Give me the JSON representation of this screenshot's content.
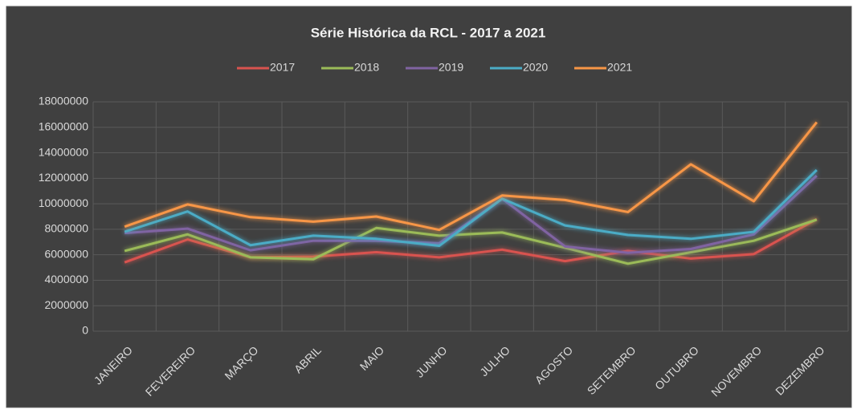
{
  "chart_data": {
    "type": "line",
    "title": "Série Histórica da RCL - 2017 a 2021",
    "categories": [
      "JANEIRO",
      "FEVEREIRO",
      "MARÇO",
      "ABRIL",
      "MAIO",
      "JUNHO",
      "JULHO",
      "AGOSTO",
      "SETEMBRO",
      "OUTUBRO",
      "NOVEMBRO",
      "DEZEMBRO"
    ],
    "series": [
      {
        "name": "2017",
        "color": "#d9534f",
        "values": [
          5400000,
          7200000,
          5800000,
          5850000,
          6200000,
          5800000,
          6400000,
          5500000,
          6300000,
          5700000,
          6050000,
          8800000
        ]
      },
      {
        "name": "2018",
        "color": "#9bbb59",
        "values": [
          6300000,
          7600000,
          5800000,
          5650000,
          8100000,
          7500000,
          7750000,
          6550000,
          5300000,
          6200000,
          7100000,
          8750000
        ]
      },
      {
        "name": "2019",
        "color": "#8064a2",
        "values": [
          7700000,
          8050000,
          6350000,
          7100000,
          7100000,
          6900000,
          10400000,
          6650000,
          6150000,
          6450000,
          7600000,
          12200000
        ]
      },
      {
        "name": "2020",
        "color": "#4bacc6",
        "values": [
          7800000,
          9400000,
          6750000,
          7500000,
          7250000,
          6700000,
          10400000,
          8300000,
          7550000,
          7250000,
          7800000,
          12650000
        ]
      },
      {
        "name": "2021",
        "color": "#f79646",
        "values": [
          8200000,
          9950000,
          8950000,
          8600000,
          9000000,
          7950000,
          10650000,
          10300000,
          9350000,
          13100000,
          10200000,
          16400000
        ]
      }
    ],
    "ylim": [
      0,
      18000000
    ],
    "yticks": [
      0,
      2000000,
      4000000,
      6000000,
      8000000,
      10000000,
      12000000,
      14000000,
      16000000,
      18000000
    ],
    "grid": true,
    "legend": "top"
  }
}
